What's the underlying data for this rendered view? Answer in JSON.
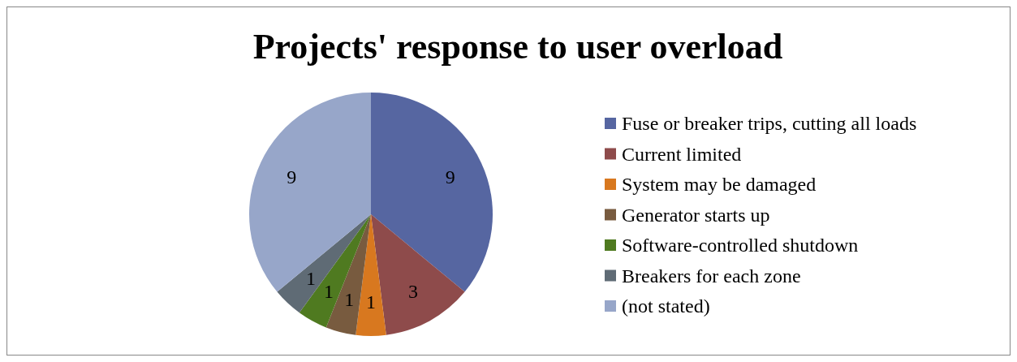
{
  "chart_data": {
    "type": "pie",
    "title": "Projects' response to user overload",
    "categories": [
      "Fuse or breaker trips, cutting all loads",
      "Current limited",
      "System may be damaged",
      "Generator starts up",
      "Software-controlled shutdown",
      "Breakers for each zone",
      "(not stated)"
    ],
    "values": [
      9,
      3,
      1,
      1,
      1,
      1,
      9
    ],
    "colors": [
      "#5666a1",
      "#8e4b4b",
      "#d8781f",
      "#785b3f",
      "#4f7a20",
      "#5f6b75",
      "#97a6c9"
    ],
    "data_labels": true,
    "legend": "right"
  }
}
